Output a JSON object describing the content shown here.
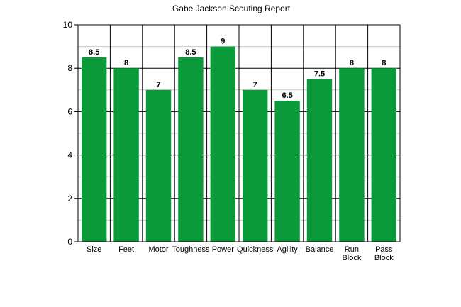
{
  "chart_data": {
    "type": "bar",
    "title": "Gabe Jackson Scouting Report",
    "xlabel": "",
    "ylabel": "",
    "categories": [
      [
        "Size"
      ],
      [
        "Feet"
      ],
      [
        "Motor"
      ],
      [
        "Toughness"
      ],
      [
        "Power"
      ],
      [
        "Quickness"
      ],
      [
        "Agility"
      ],
      [
        "Balance"
      ],
      [
        "Run",
        "Block"
      ],
      [
        "Pass",
        "Block"
      ]
    ],
    "values": [
      8.5,
      8,
      7,
      8.5,
      9,
      7,
      6.5,
      7.5,
      8,
      8
    ],
    "data_labels": [
      "8.5",
      "8",
      "7",
      "8.5",
      "9",
      "7",
      "6.5",
      "7.5",
      "8",
      "8"
    ],
    "ylim": [
      0,
      10
    ],
    "y_ticks": [
      0,
      2,
      4,
      6,
      8,
      10
    ],
    "minor_grid_step": 1,
    "grid": true,
    "legend": "none",
    "colors": {
      "bar": "#0a9a3a",
      "grid_major": "#000000",
      "grid_minor": "#c8c8c8",
      "axis": "#000000",
      "text": "#000000"
    }
  }
}
